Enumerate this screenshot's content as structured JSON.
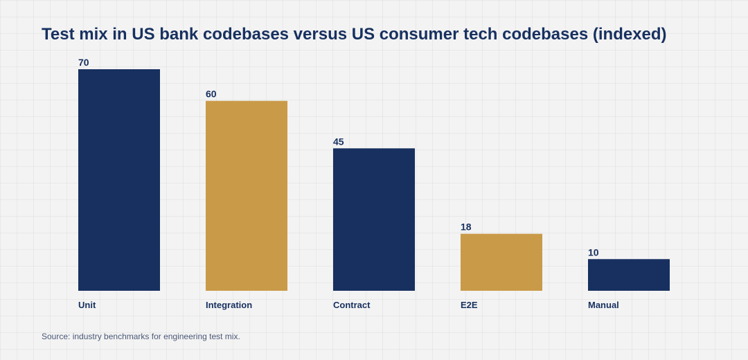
{
  "title": "Test mix in US bank codebases versus US consumer tech codebases (indexed)",
  "source": "Source: industry benchmarks for engineering test mix.",
  "colors": {
    "navy": "#17305f",
    "gold": "#c99a48"
  },
  "chart_data": {
    "type": "bar",
    "title": "Test mix in US bank codebases versus US consumer tech codebases (indexed)",
    "categories": [
      "Unit",
      "Integration",
      "Contract",
      "E2E",
      "Manual"
    ],
    "values": [
      70,
      60,
      45,
      18,
      10
    ],
    "bar_colors": [
      "#17305f",
      "#c99a48",
      "#17305f",
      "#c99a48",
      "#17305f"
    ],
    "xlabel": "",
    "ylabel": "",
    "ylim": [
      0,
      70
    ],
    "grid": true,
    "legend": "none"
  }
}
